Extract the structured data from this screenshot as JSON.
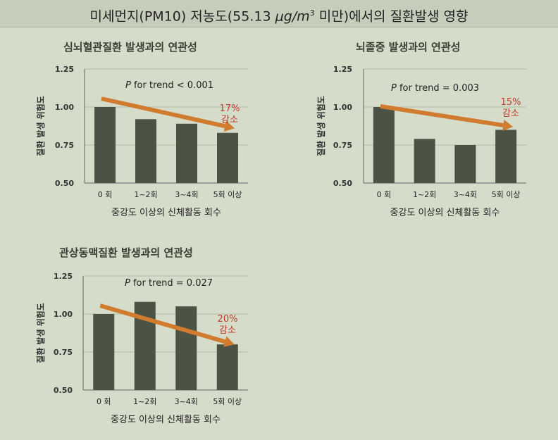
{
  "header": {
    "title_before": "미세먼지(PM10) 저농도(55.13 ",
    "title_unit": "μg/m",
    "title_sup": "3",
    "title_after": " 미만)에서의 질환발생 영향"
  },
  "colors": {
    "bar": "#4c5345",
    "arrow": "#d07b2d",
    "annotation": "#c0392b",
    "background": "#d5dcca",
    "header": "#c6cebb"
  },
  "chart_data": [
    {
      "type": "bar",
      "title": "심뇌혈관질환 발생과의 연관성",
      "categories": [
        "0 회",
        "1~2회",
        "3~4회",
        "5회 이상"
      ],
      "values": [
        1.0,
        0.92,
        0.89,
        0.83
      ],
      "xlabel": "중강도 이상의 신체활동 회수",
      "ylabel": "질환 발생 위험도",
      "ylim": [
        0.5,
        1.25
      ],
      "yticks": [
        "0.50",
        "0.75",
        "1.00",
        "1.25"
      ],
      "trend_label": "P for trend < 0.001",
      "trend_p": "P",
      "trend_rest": " for trend < 0.001",
      "reduction_pct": "17%",
      "reduction_word": "감소",
      "arrow_from": [
        0,
        1.055
      ],
      "arrow_to": [
        3,
        0.86
      ],
      "grid": true
    },
    {
      "type": "bar",
      "title": "뇌졸중 발생과의 연관성",
      "categories": [
        "0 회",
        "1~2회",
        "3~4회",
        "5회 이상"
      ],
      "values": [
        1.0,
        0.79,
        0.75,
        0.85
      ],
      "xlabel": "중강도 이상의 신체활동 회수",
      "ylabel": "질환 발생 위험도",
      "ylim": [
        0.5,
        1.25
      ],
      "yticks": [
        "0.50",
        "0.75",
        "1.00",
        "1.25"
      ],
      "trend_label": "P for trend = 0.003",
      "trend_p": "P",
      "trend_rest": " for trend = 0.003",
      "reduction_pct": "15%",
      "reduction_word": "감소",
      "arrow_from": [
        0,
        1.005
      ],
      "arrow_to": [
        3,
        0.87
      ],
      "grid": true
    },
    {
      "type": "bar",
      "title": "관상동맥질환 발생과의 연관성",
      "categories": [
        "0 회",
        "1~2회",
        "3~4회",
        "5회 이상"
      ],
      "values": [
        1.0,
        1.08,
        1.05,
        0.8
      ],
      "xlabel": "중강도 이상의 신체활동 회수",
      "ylabel": "질환 발생 위험도",
      "ylim": [
        0.5,
        1.25
      ],
      "yticks": [
        "0.50",
        "0.75",
        "1.00",
        "1.25"
      ],
      "trend_label": "P for trend = 0.027",
      "trend_p": "P",
      "trend_rest": " for trend = 0.027",
      "reduction_pct": "20%",
      "reduction_word": "감소",
      "arrow_from": [
        0,
        1.055
      ],
      "arrow_to": [
        3,
        0.8
      ],
      "grid": true
    }
  ]
}
